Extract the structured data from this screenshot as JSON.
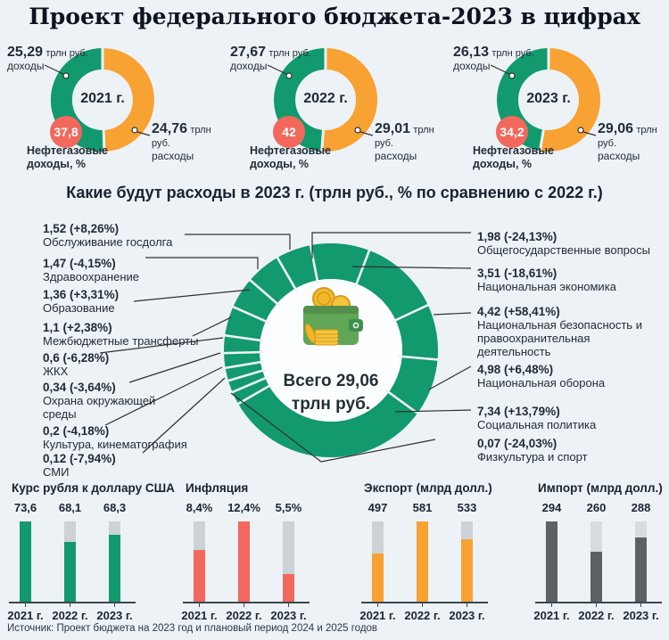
{
  "title": "Проект федерального бюджета-2023 в цифрах",
  "source": "Источник: Проект бюджета на 2023 год и плановый период 2024 и 2025 годов",
  "colors": {
    "green": "#13996e",
    "orange": "#f7a233",
    "red": "#f2685c",
    "background": "#edf2f6",
    "track_gray": "#ccd2d6",
    "import_dark": "#5d6163",
    "import_track": "#d9dcdf",
    "leader_line": "#33302e",
    "inner_circle": "#fbfdfe"
  },
  "year_donuts": [
    {
      "year": "2021 г.",
      "income": {
        "value": "25,29",
        "unit": "трлн руб.",
        "label": "доходы",
        "num": 25.29
      },
      "expense": {
        "value": "24,76",
        "unit": "трлн руб.",
        "label": "расходы",
        "num": 24.76
      },
      "badge_value": "37,8",
      "badge_label": "Нефтегазовые доходы, %"
    },
    {
      "year": "2022 г.",
      "income": {
        "value": "27,67",
        "unit": "трлн руб.",
        "label": "доходы",
        "num": 27.67
      },
      "expense": {
        "value": "29,01",
        "unit": "трлн руб.",
        "label": "расходы",
        "num": 29.01
      },
      "badge_value": "42",
      "badge_label": "Нефтегазовые доходы, %"
    },
    {
      "year": "2023 г.",
      "income": {
        "value": "26,13",
        "unit": "трлн руб.",
        "label": "доходы",
        "num": 26.13
      },
      "expense": {
        "value": "29,06",
        "unit": "трлн руб.",
        "label": "расходы",
        "num": 29.06
      },
      "badge_value": "34,2",
      "badge_label": "Нефтегазовые доходы, %"
    }
  ],
  "expenses": {
    "subtitle": "Какие будут расходы в 2023 г. (трлн руб., % по сравнению с 2022 г.)",
    "center_line1": "Всего 29,06",
    "center_line2": "трлн руб.",
    "left_items": [
      {
        "value": "1,52",
        "change": "(+8,26%)",
        "name": "Обслуживание госдолга"
      },
      {
        "value": "1,47",
        "change": "(-4,15%)",
        "name": "Здравоохранение"
      },
      {
        "value": "1,36",
        "change": "(+3,31%)",
        "name": "Образование"
      },
      {
        "value": "1,1",
        "change": "(+2,38%)",
        "name": "Межбюджетные трансферты"
      },
      {
        "value": "0,6",
        "change": "(-6,28%)",
        "name": "ЖКХ"
      },
      {
        "value": "0,34",
        "change": "(-3,64%)",
        "name": "Охрана окружающей среды"
      },
      {
        "value": "0,2",
        "change": "(-4,18%)",
        "name": "Культура, кинематография"
      },
      {
        "value": "0,12",
        "change": "(-7,94%)",
        "name": "СМИ"
      }
    ],
    "right_items": [
      {
        "value": "1,98",
        "change": "(-24,13%)",
        "name": "Общегосударственные вопросы"
      },
      {
        "value": "3,51",
        "change": "(-18,61%)",
        "name": "Национальная экономика"
      },
      {
        "value": "4,42",
        "change": "(+58,41%)",
        "name": "Национальная безопасность и правоохранительная деятельность"
      },
      {
        "value": "4,98",
        "change": "(+6,48%)",
        "name": "Национальная оборона"
      },
      {
        "value": "7,34",
        "change": "(+13,79%)",
        "name": "Социальная политика"
      },
      {
        "value": "0,07",
        "change": "(-24,03%)",
        "name": "Физкультура и спорт"
      }
    ]
  },
  "indicators": {
    "years": [
      "2021 г.",
      "2022 г.",
      "2023 г."
    ],
    "groups": [
      {
        "title": "Курс рубля к доллару США",
        "values": [
          "73,6",
          "68,1",
          "68,3"
        ],
        "nums": [
          73.6,
          68.1,
          68.3
        ],
        "fills": [
          1,
          0.74,
          0.83
        ],
        "color": "#13996e",
        "track": "#ccd2d6"
      },
      {
        "title": "Инфляция",
        "values": [
          "8,4%",
          "12,4%",
          "5,5%"
        ],
        "nums": [
          8.4,
          12.4,
          5.5
        ],
        "fills": [
          0.64,
          1,
          0.35
        ],
        "color": "#f2685c",
        "track": "#ccd2d6"
      },
      {
        "title": "Экспорт (млрд долл.)",
        "values": [
          "497",
          "581",
          "533"
        ],
        "nums": [
          497,
          581,
          533
        ],
        "fills": [
          0.6,
          1,
          0.78
        ],
        "color": "#f7a233",
        "track": "#ccd2d6"
      },
      {
        "title": "Импорт (млрд долл.)",
        "values": [
          "294",
          "260",
          "288"
        ],
        "nums": [
          294,
          260,
          288
        ],
        "fills": [
          1,
          0.62,
          0.8
        ],
        "color": "#5d6163",
        "track": "#d9dcdf"
      }
    ]
  },
  "chart_data": [
    {
      "type": "pie",
      "subtype": "donut",
      "title": "2021 г.",
      "slices": [
        {
          "label": "доходы",
          "value": 25.29
        },
        {
          "label": "расходы",
          "value": 24.76
        }
      ],
      "unit": "трлн руб.",
      "badge": {
        "label": "Нефтегазовые доходы, %",
        "value": 37.8
      }
    },
    {
      "type": "pie",
      "subtype": "donut",
      "title": "2022 г.",
      "slices": [
        {
          "label": "доходы",
          "value": 27.67
        },
        {
          "label": "расходы",
          "value": 29.01
        }
      ],
      "unit": "трлн руб.",
      "badge": {
        "label": "Нефтегазовые доходы, %",
        "value": 42
      }
    },
    {
      "type": "pie",
      "subtype": "donut",
      "title": "2023 г.",
      "slices": [
        {
          "label": "доходы",
          "value": 26.13
        },
        {
          "label": "расходы",
          "value": 29.06
        }
      ],
      "unit": "трлн руб.",
      "badge": {
        "label": "Нефтегазовые доходы, %",
        "value": 34.2
      }
    },
    {
      "type": "pie",
      "subtype": "donut",
      "title": "Какие будут расходы в 2023 г. (трлн руб., % по сравнению с 2022 г.)",
      "center_label": "Всего 29,06 трлн руб.",
      "unit": "трлн руб.",
      "slices": [
        {
          "label": "Общегосударственные вопросы",
          "value": 1.98,
          "change_pct": -24.13
        },
        {
          "label": "Национальная экономика",
          "value": 3.51,
          "change_pct": -18.61
        },
        {
          "label": "Национальная безопасность и правоохранительная деятельность",
          "value": 4.42,
          "change_pct": 58.41
        },
        {
          "label": "Национальная оборона",
          "value": 4.98,
          "change_pct": 6.48
        },
        {
          "label": "Социальная политика",
          "value": 7.34,
          "change_pct": 13.79
        },
        {
          "label": "Физкультура и спорт",
          "value": 0.07,
          "change_pct": -24.03
        },
        {
          "label": "СМИ",
          "value": 0.12,
          "change_pct": -7.94
        },
        {
          "label": "Культура, кинематография",
          "value": 0.2,
          "change_pct": -4.18
        },
        {
          "label": "Охрана окружающей среды",
          "value": 0.34,
          "change_pct": -3.64
        },
        {
          "label": "ЖКХ",
          "value": 0.6,
          "change_pct": -6.28
        },
        {
          "label": "Межбюджетные трансферты",
          "value": 1.1,
          "change_pct": 2.38
        },
        {
          "label": "Образование",
          "value": 1.36,
          "change_pct": 3.31
        },
        {
          "label": "Здравоохранение",
          "value": 1.47,
          "change_pct": -4.15
        },
        {
          "label": "Обслуживание госдолга",
          "value": 1.52,
          "change_pct": 8.26
        }
      ]
    },
    {
      "type": "bar",
      "title": "Курс рубля к доллару США",
      "categories": [
        "2021 г.",
        "2022 г.",
        "2023 г."
      ],
      "values": [
        73.6,
        68.1,
        68.3
      ]
    },
    {
      "type": "bar",
      "title": "Инфляция",
      "categories": [
        "2021 г.",
        "2022 г.",
        "2023 г."
      ],
      "values": [
        8.4,
        12.4,
        5.5
      ],
      "unit": "%"
    },
    {
      "type": "bar",
      "title": "Экспорт (млрд долл.)",
      "categories": [
        "2021 г.",
        "2022 г.",
        "2023 г."
      ],
      "values": [
        497,
        581,
        533
      ]
    },
    {
      "type": "bar",
      "title": "Импорт (млрд долл.)",
      "categories": [
        "2021 г.",
        "2022 г.",
        "2023 г."
      ],
      "values": [
        294,
        260,
        288
      ]
    }
  ]
}
